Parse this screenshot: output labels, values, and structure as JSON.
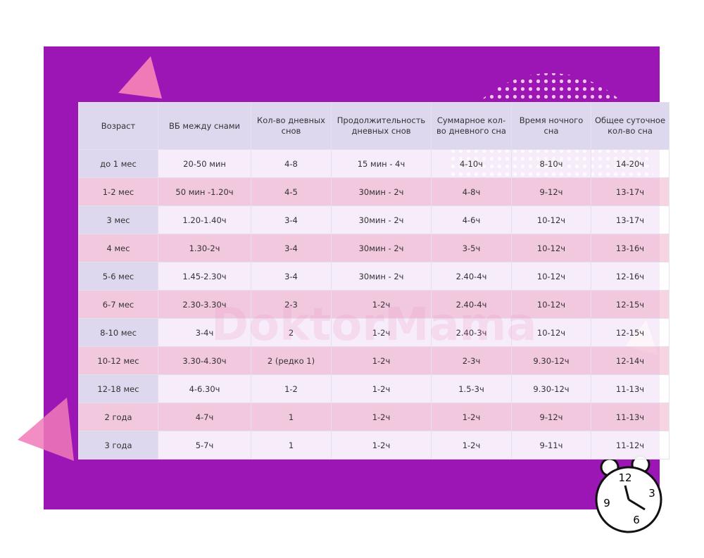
{
  "watermark": "DoktorMama",
  "table": {
    "header": [
      "Возраст",
      "ВБ между снами",
      "Кол-во дневных снов",
      "Продолжительность дневных снов",
      "Суммарное кол-во дневного сна",
      "Время ночного сна",
      "Общее суточное кол-во сна"
    ],
    "rows": [
      [
        "до 1 мес",
        "20-50 мин",
        "4-8",
        "15 мин - 4ч",
        "4-10ч",
        "8-10ч",
        "14-20ч"
      ],
      [
        "1-2 мес",
        "50 мин -1.20ч",
        "4-5",
        "30мин - 2ч",
        "4-8ч",
        "9-12ч",
        "13-17ч"
      ],
      [
        "3 мес",
        "1.20-1.40ч",
        "3-4",
        "30мин - 2ч",
        "4-6ч",
        "10-12ч",
        "13-17ч"
      ],
      [
        "4 мес",
        "1.30-2ч",
        "3-4",
        "30мин - 2ч",
        "3-5ч",
        "10-12ч",
        "13-16ч"
      ],
      [
        "5-6 мес",
        "1.45-2.30ч",
        "3-4",
        "30мин - 2ч",
        "2.40-4ч",
        "10-12ч",
        "12-16ч"
      ],
      [
        "6-7 мес",
        "2.30-3.30ч",
        "2-3",
        "1-2ч",
        "2.40-4ч",
        "10-12ч",
        "12-15ч"
      ],
      [
        "8-10 мес",
        "3-4ч",
        "2",
        "1-2ч",
        "2.40-3ч",
        "10-12ч",
        "12-15ч"
      ],
      [
        "10-12 мес",
        "3.30-4.30ч",
        "2 (редко 1)",
        "1-2ч",
        "2-3ч",
        "9.30-12ч",
        "12-14ч"
      ],
      [
        "12-18 мес",
        "4-6.30ч",
        "1-2",
        "1-2ч",
        "1.5-3ч",
        "9.30-12ч",
        "11-13ч"
      ],
      [
        "2 года",
        "4-7ч",
        "1",
        "1-2ч",
        "1-2ч",
        "9-12ч",
        "11-13ч"
      ],
      [
        "3 года",
        "5-7ч",
        "1",
        "1-2ч",
        "1-2ч",
        "9-11ч",
        "11-12ч"
      ]
    ]
  },
  "clock": {
    "numbers": [
      "12",
      "3",
      "6",
      "9"
    ]
  }
}
